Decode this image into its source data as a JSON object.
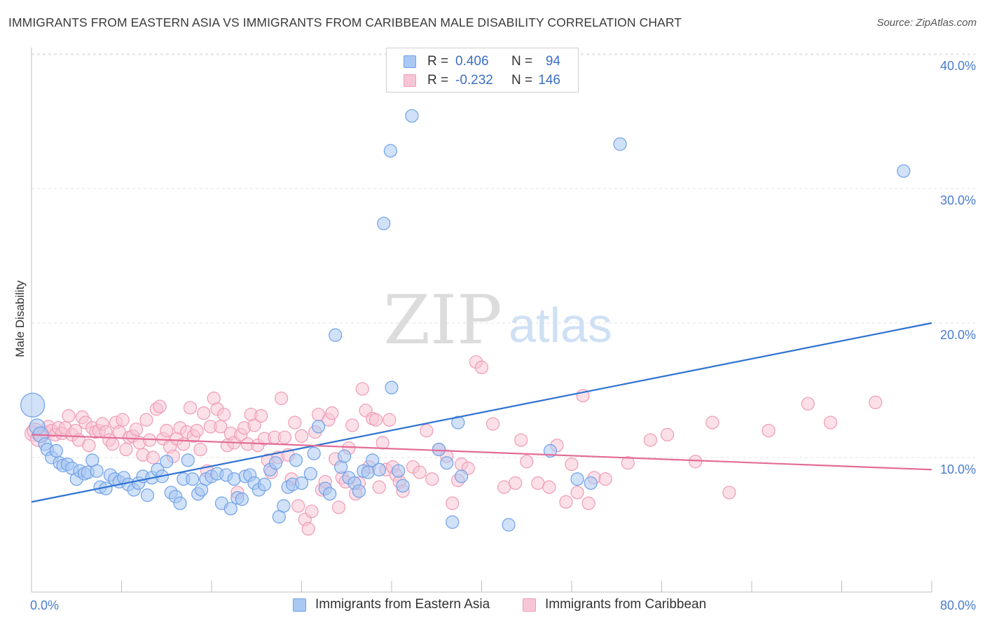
{
  "title": "IMMIGRANTS FROM EASTERN ASIA VS IMMIGRANTS FROM CARIBBEAN MALE DISABILITY CORRELATION CHART",
  "source": "Source: ZipAtlas.com",
  "watermark": {
    "zip": "ZIP",
    "atlas": "atlas"
  },
  "legend": {
    "rows": [
      {
        "r_label": "R =",
        "r_value": "0.406",
        "n_label": "N =",
        "n_value": "94"
      },
      {
        "r_label": "R =",
        "r_value": "-0.232",
        "n_label": "N =",
        "n_value": "146"
      }
    ]
  },
  "chart_data": {
    "type": "scatter",
    "xlabel": "",
    "ylabel": "Male Disability",
    "xlim": [
      0,
      80
    ],
    "ylim": [
      0,
      41
    ],
    "x_tick_labels": [
      "0.0%",
      "80.0%"
    ],
    "y_ticks": [
      10,
      20,
      30,
      40
    ],
    "y_tick_labels": [
      "10.0%",
      "20.0%",
      "30.0%",
      "40.0%"
    ],
    "grid": "horizontal dashed",
    "legend_position": "top-center",
    "series": [
      {
        "name": "Immigrants from Eastern Asia",
        "color": "#6fa1e8",
        "fill": "#a9c8f2",
        "line_color": "#2e72d2",
        "R": 0.406,
        "N": 94,
        "trend": {
          "x": [
            0,
            80
          ],
          "y": [
            6.7,
            20.0
          ]
        },
        "points": [
          [
            0.1,
            13.9
          ],
          [
            0.5,
            12.3
          ],
          [
            0.8,
            11.7
          ],
          [
            1.2,
            11.0
          ],
          [
            1.4,
            10.6
          ],
          [
            1.8,
            10.0
          ],
          [
            2.2,
            10.5
          ],
          [
            2.5,
            9.6
          ],
          [
            2.8,
            9.4
          ],
          [
            3.2,
            9.5
          ],
          [
            3.6,
            9.2
          ],
          [
            4.0,
            8.4
          ],
          [
            4.3,
            9.0
          ],
          [
            4.7,
            8.8
          ],
          [
            5.0,
            8.9
          ],
          [
            5.4,
            9.8
          ],
          [
            5.8,
            9.0
          ],
          [
            6.1,
            7.8
          ],
          [
            6.6,
            7.7
          ],
          [
            7.0,
            8.7
          ],
          [
            7.4,
            8.4
          ],
          [
            7.8,
            8.2
          ],
          [
            8.2,
            8.5
          ],
          [
            8.6,
            8.0
          ],
          [
            9.1,
            7.6
          ],
          [
            9.5,
            8.1
          ],
          [
            9.9,
            8.6
          ],
          [
            10.3,
            7.2
          ],
          [
            10.7,
            8.5
          ],
          [
            11.2,
            9.1
          ],
          [
            11.6,
            8.6
          ],
          [
            12.0,
            9.7
          ],
          [
            12.4,
            7.4
          ],
          [
            12.8,
            7.1
          ],
          [
            13.2,
            6.6
          ],
          [
            13.5,
            8.4
          ],
          [
            13.9,
            9.8
          ],
          [
            14.3,
            8.4
          ],
          [
            14.8,
            7.3
          ],
          [
            15.1,
            7.6
          ],
          [
            15.5,
            8.4
          ],
          [
            16.0,
            8.6
          ],
          [
            16.5,
            8.8
          ],
          [
            16.9,
            6.6
          ],
          [
            17.3,
            8.7
          ],
          [
            17.7,
            6.2
          ],
          [
            18.0,
            8.4
          ],
          [
            18.3,
            7.0
          ],
          [
            18.7,
            6.9
          ],
          [
            19.0,
            8.6
          ],
          [
            19.4,
            8.7
          ],
          [
            19.8,
            8.1
          ],
          [
            20.2,
            7.6
          ],
          [
            20.7,
            8.0
          ],
          [
            21.2,
            9.1
          ],
          [
            21.7,
            9.6
          ],
          [
            22.0,
            5.6
          ],
          [
            22.4,
            6.4
          ],
          [
            22.8,
            7.8
          ],
          [
            23.2,
            8.0
          ],
          [
            23.5,
            9.8
          ],
          [
            24.0,
            8.1
          ],
          [
            24.8,
            8.8
          ],
          [
            25.1,
            10.3
          ],
          [
            25.5,
            12.3
          ],
          [
            26.1,
            7.7
          ],
          [
            26.5,
            7.3
          ],
          [
            27.0,
            19.1
          ],
          [
            27.5,
            9.3
          ],
          [
            27.8,
            10.1
          ],
          [
            28.2,
            8.5
          ],
          [
            28.7,
            8.1
          ],
          [
            29.1,
            7.5
          ],
          [
            29.5,
            9.0
          ],
          [
            29.9,
            8.9
          ],
          [
            30.3,
            9.8
          ],
          [
            30.9,
            9.1
          ],
          [
            31.3,
            27.4
          ],
          [
            31.9,
            32.8
          ],
          [
            32.0,
            15.2
          ],
          [
            32.6,
            9.0
          ],
          [
            33.0,
            7.9
          ],
          [
            33.8,
            35.4
          ],
          [
            36.2,
            10.6
          ],
          [
            36.9,
            9.6
          ],
          [
            37.4,
            5.2
          ],
          [
            37.9,
            12.6
          ],
          [
            38.2,
            8.6
          ],
          [
            42.4,
            5.0
          ],
          [
            46.1,
            10.5
          ],
          [
            48.5,
            8.4
          ],
          [
            49.7,
            8.1
          ],
          [
            52.3,
            33.3
          ],
          [
            77.5,
            31.3
          ]
        ]
      },
      {
        "name": "Immigrants from Caribbean",
        "color": "#f09ab5",
        "fill": "#f7c6d6",
        "line_color": "#e36c96",
        "R": -0.232,
        "N": 146,
        "trend": {
          "x": [
            0,
            80
          ],
          "y": [
            11.7,
            9.1
          ]
        },
        "points": [
          [
            0.1,
            11.8
          ],
          [
            0.3,
            12.0
          ],
          [
            0.6,
            11.4
          ],
          [
            0.9,
            11.7
          ],
          [
            1.2,
            11.9
          ],
          [
            1.5,
            12.3
          ],
          [
            1.8,
            12.0
          ],
          [
            2.1,
            11.7
          ],
          [
            2.4,
            12.2
          ],
          [
            2.7,
            11.8
          ],
          [
            3.0,
            12.2
          ],
          [
            3.3,
            13.1
          ],
          [
            3.6,
            11.7
          ],
          [
            3.9,
            12.0
          ],
          [
            4.2,
            11.3
          ],
          [
            4.5,
            13.0
          ],
          [
            4.8,
            12.6
          ],
          [
            5.1,
            10.9
          ],
          [
            5.4,
            12.2
          ],
          [
            5.7,
            11.9
          ],
          [
            6.0,
            12.0
          ],
          [
            6.3,
            12.5
          ],
          [
            6.6,
            11.9
          ],
          [
            6.9,
            11.3
          ],
          [
            7.2,
            11.0
          ],
          [
            7.5,
            12.6
          ],
          [
            7.8,
            11.9
          ],
          [
            8.1,
            12.8
          ],
          [
            8.4,
            10.6
          ],
          [
            8.7,
            11.5
          ],
          [
            9.0,
            11.6
          ],
          [
            9.3,
            12.1
          ],
          [
            9.6,
            11.1
          ],
          [
            9.9,
            10.2
          ],
          [
            10.2,
            12.8
          ],
          [
            10.5,
            11.3
          ],
          [
            10.8,
            10.0
          ],
          [
            11.1,
            13.6
          ],
          [
            11.4,
            13.8
          ],
          [
            11.7,
            11.4
          ],
          [
            12.0,
            12.0
          ],
          [
            12.3,
            10.8
          ],
          [
            12.6,
            10.1
          ],
          [
            12.9,
            11.4
          ],
          [
            13.2,
            12.2
          ],
          [
            13.5,
            11.0
          ],
          [
            13.8,
            11.9
          ],
          [
            14.1,
            13.7
          ],
          [
            14.4,
            11.6
          ],
          [
            14.7,
            12.0
          ],
          [
            15.0,
            10.6
          ],
          [
            15.3,
            13.3
          ],
          [
            15.6,
            9.0
          ],
          [
            15.9,
            12.3
          ],
          [
            16.2,
            14.4
          ],
          [
            16.5,
            13.6
          ],
          [
            16.8,
            12.3
          ],
          [
            17.1,
            13.2
          ],
          [
            17.4,
            10.9
          ],
          [
            17.7,
            11.8
          ],
          [
            18.0,
            11.1
          ],
          [
            18.3,
            7.4
          ],
          [
            18.6,
            11.7
          ],
          [
            18.9,
            12.2
          ],
          [
            19.2,
            11.0
          ],
          [
            19.5,
            13.2
          ],
          [
            19.8,
            12.4
          ],
          [
            20.1,
            10.9
          ],
          [
            20.4,
            13.1
          ],
          [
            20.7,
            11.4
          ],
          [
            21.0,
            9.8
          ],
          [
            21.3,
            8.9
          ],
          [
            21.6,
            11.5
          ],
          [
            21.9,
            10.0
          ],
          [
            22.2,
            14.4
          ],
          [
            22.5,
            11.5
          ],
          [
            22.8,
            10.2
          ],
          [
            23.1,
            8.4
          ],
          [
            23.4,
            12.6
          ],
          [
            23.7,
            6.4
          ],
          [
            24.0,
            11.6
          ],
          [
            24.3,
            5.4
          ],
          [
            24.6,
            4.7
          ],
          [
            24.9,
            6.0
          ],
          [
            25.2,
            11.9
          ],
          [
            25.5,
            13.2
          ],
          [
            25.8,
            7.6
          ],
          [
            26.1,
            8.2
          ],
          [
            26.4,
            12.8
          ],
          [
            26.7,
            13.3
          ],
          [
            27.0,
            9.9
          ],
          [
            27.3,
            6.3
          ],
          [
            27.6,
            8.5
          ],
          [
            27.9,
            8.2
          ],
          [
            28.2,
            10.7
          ],
          [
            28.5,
            12.4
          ],
          [
            28.8,
            7.3
          ],
          [
            29.1,
            8.1
          ],
          [
            29.4,
            15.1
          ],
          [
            29.7,
            13.5
          ],
          [
            30.0,
            9.3
          ],
          [
            30.3,
            12.9
          ],
          [
            30.6,
            12.8
          ],
          [
            30.9,
            7.8
          ],
          [
            31.2,
            11.1
          ],
          [
            31.5,
            9.1
          ],
          [
            31.8,
            12.8
          ],
          [
            32.1,
            9.3
          ],
          [
            32.4,
            8.7
          ],
          [
            32.7,
            8.2
          ],
          [
            33.0,
            7.5
          ],
          [
            33.9,
            9.3
          ],
          [
            34.5,
            8.9
          ],
          [
            35.1,
            12.0
          ],
          [
            35.6,
            8.4
          ],
          [
            36.2,
            10.6
          ],
          [
            36.9,
            10.1
          ],
          [
            37.4,
            6.6
          ],
          [
            37.9,
            8.3
          ],
          [
            38.2,
            9.5
          ],
          [
            38.8,
            9.2
          ],
          [
            39.5,
            17.1
          ],
          [
            40.0,
            16.7
          ],
          [
            41.0,
            12.5
          ],
          [
            42.0,
            7.8
          ],
          [
            43.0,
            8.1
          ],
          [
            43.5,
            11.3
          ],
          [
            44.0,
            9.7
          ],
          [
            45.0,
            8.1
          ],
          [
            46.0,
            7.8
          ],
          [
            46.7,
            10.9
          ],
          [
            47.5,
            6.7
          ],
          [
            48.0,
            9.5
          ],
          [
            48.5,
            7.4
          ],
          [
            49.0,
            14.6
          ],
          [
            49.5,
            6.6
          ],
          [
            50.0,
            8.5
          ],
          [
            51.0,
            8.4
          ],
          [
            53.0,
            9.6
          ],
          [
            55.0,
            11.3
          ],
          [
            56.5,
            11.7
          ],
          [
            59.0,
            9.7
          ],
          [
            60.5,
            12.6
          ],
          [
            62.0,
            7.4
          ],
          [
            65.5,
            12.0
          ],
          [
            69.0,
            14.0
          ],
          [
            71.0,
            12.6
          ],
          [
            75.0,
            14.1
          ]
        ]
      }
    ]
  },
  "bottom_legend": {
    "series1": "Immigrants from Eastern Asia",
    "series2": "Immigrants from Caribbean"
  }
}
